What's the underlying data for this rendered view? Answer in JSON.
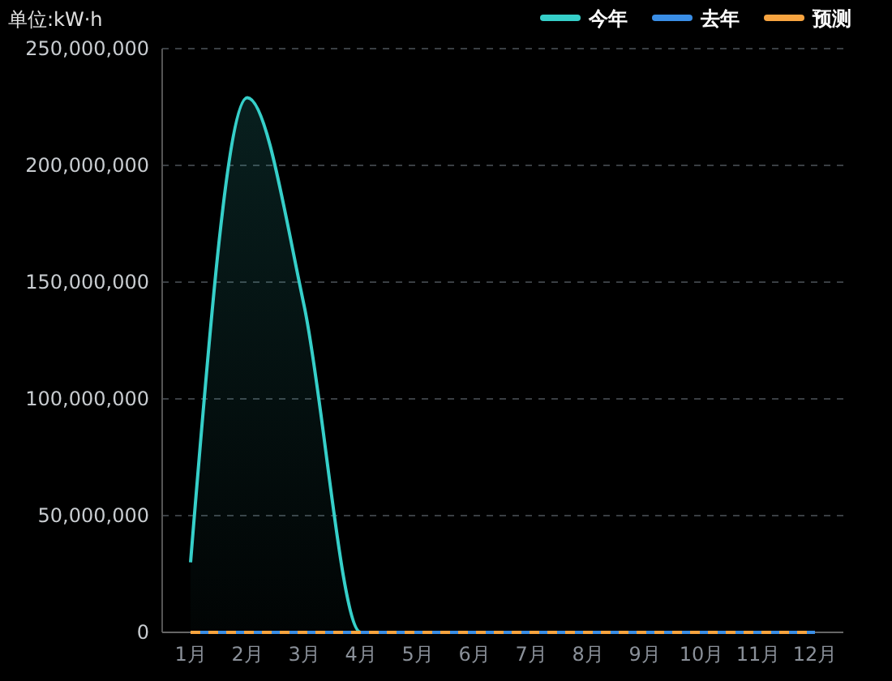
{
  "chart_data": {
    "type": "line",
    "ylabel": "单位:kW·h",
    "categories": [
      "1月",
      "2月",
      "3月",
      "4月",
      "5月",
      "6月",
      "7月",
      "8月",
      "9月",
      "10月",
      "11月",
      "12月"
    ],
    "ylim": [
      0,
      250000000
    ],
    "yticks": [
      {
        "value": 0,
        "label": "0"
      },
      {
        "value": 50000000,
        "label": "50,000,000"
      },
      {
        "value": 100000000,
        "label": "100,000,000"
      },
      {
        "value": 150000000,
        "label": "150,000,000"
      },
      {
        "value": 200000000,
        "label": "200,000,000"
      },
      {
        "value": 250000000,
        "label": "250,000,000"
      }
    ],
    "grid": "y",
    "legend": "top right",
    "series": [
      {
        "name": "今年",
        "type": "area",
        "color": "#36cfc9",
        "values": [
          30000000,
          229000000,
          140000000,
          0,
          0,
          0,
          0,
          0,
          0,
          0,
          0,
          0
        ]
      },
      {
        "name": "去年",
        "color": "#3a8ee6",
        "values": [
          0,
          0,
          0,
          0,
          0,
          0,
          0,
          0,
          0,
          0,
          0,
          0
        ]
      },
      {
        "name": "预测",
        "color": "#f7a440",
        "line_style": "dashed",
        "values": [
          0,
          0,
          0,
          0,
          0,
          0,
          0,
          0,
          0,
          0,
          0,
          0
        ]
      }
    ]
  }
}
